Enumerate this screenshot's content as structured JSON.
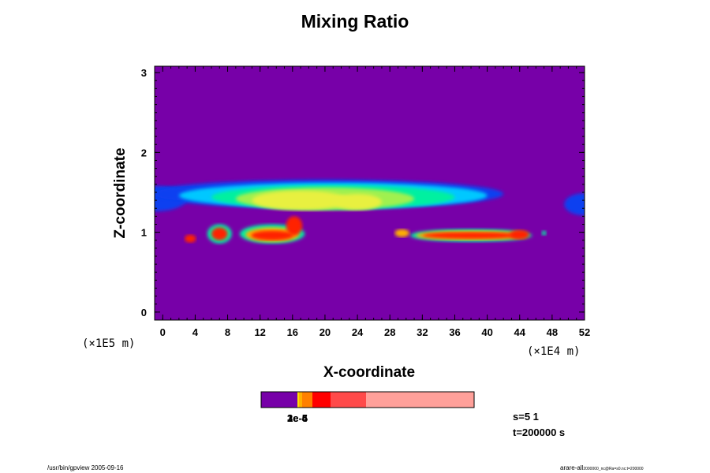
{
  "chart_data": {
    "type": "heatmap",
    "title": "Mixing Ratio",
    "xlabel": "X-coordinate",
    "ylabel": "Z-coordinate",
    "x_scale_note": "(×1E4 m)",
    "y_scale_note": "(×1E5 m)",
    "xlim": [
      -1,
      52
    ],
    "ylim": [
      -0.1,
      3.08
    ],
    "xticks": [
      0,
      4,
      8,
      12,
      16,
      20,
      24,
      28,
      32,
      36,
      40,
      44,
      48,
      52
    ],
    "yticks": [
      0,
      1,
      2,
      3
    ],
    "background_color": "#7700a8",
    "level_colors": [
      "#7700a8",
      "#1040f0",
      "#00c8ff",
      "#00f0a0",
      "#a0f050",
      "#e8f040",
      "#ffb000",
      "#ff2000",
      "#c00000"
    ],
    "colorbar": {
      "segments": [
        {
          "color": "#7700a8",
          "width": 46
        },
        {
          "color": "#ffe000",
          "width": 2
        },
        {
          "color": "#ffb000",
          "width": 4
        },
        {
          "color": "#ff8000",
          "width": 13
        },
        {
          "color": "#ff0000",
          "width": 23
        },
        {
          "color": "#ff4a4a",
          "width": 45
        },
        {
          "color": "#ffa09a",
          "width": 137
        }
      ],
      "labels": [
        "1e-6",
        "2e-5",
        "3e-4"
      ]
    }
  },
  "info": {
    "s_value": "s=5 1",
    "t_value": "t=200000 s"
  },
  "footer": {
    "left": "/usr/bin/gpview 2005-09-16",
    "right_main": "arare-all",
    "right_sub": "2000000_nc@Ra=s0.nc:t=200000"
  }
}
